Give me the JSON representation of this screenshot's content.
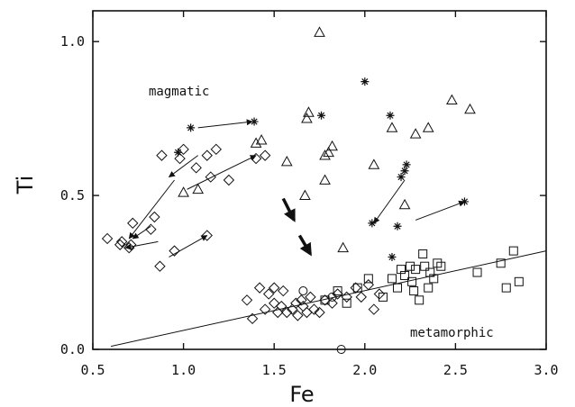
{
  "chart_data": {
    "type": "scatter",
    "title": "",
    "xlabel": "Fe",
    "ylabel": "Ti",
    "xlim": [
      0.5,
      3.0
    ],
    "ylim": [
      0.0,
      1.1
    ],
    "xticks": [
      0.5,
      1.0,
      1.5,
      2.0,
      2.5,
      3.0
    ],
    "xtick_labels": [
      "0.5",
      "1.0",
      "1.5",
      "2.0",
      "2.5",
      "3.0"
    ],
    "yticks": [
      0.0,
      0.5,
      1.0
    ],
    "ytick_labels": [
      "0.0",
      "0.5",
      "1.0"
    ],
    "grid": false,
    "color": "#111111",
    "annotations": [
      {
        "text": "magmatic",
        "x": 1.18,
        "y": 0.85
      },
      {
        "text": "metamorphic",
        "x": 2.45,
        "y": 0.05
      }
    ],
    "series": [
      {
        "marker": "diamond",
        "points": [
          [
            0.58,
            0.36
          ],
          [
            0.65,
            0.34
          ],
          [
            0.66,
            0.35
          ],
          [
            0.7,
            0.33
          ],
          [
            0.71,
            0.34
          ],
          [
            0.72,
            0.41
          ],
          [
            0.82,
            0.39
          ],
          [
            0.84,
            0.43
          ],
          [
            0.87,
            0.27
          ],
          [
            0.95,
            0.32
          ],
          [
            1.13,
            0.37
          ],
          [
            0.88,
            0.63
          ],
          [
            0.98,
            0.62
          ],
          [
            1.0,
            0.65
          ],
          [
            1.07,
            0.59
          ],
          [
            1.13,
            0.63
          ],
          [
            1.15,
            0.56
          ],
          [
            1.18,
            0.65
          ],
          [
            1.25,
            0.55
          ],
          [
            1.4,
            0.62
          ],
          [
            1.45,
            0.63
          ],
          [
            1.35,
            0.16
          ],
          [
            1.38,
            0.1
          ],
          [
            1.42,
            0.2
          ],
          [
            1.45,
            0.13
          ],
          [
            1.47,
            0.18
          ],
          [
            1.5,
            0.2
          ],
          [
            1.5,
            0.15
          ],
          [
            1.52,
            0.12
          ],
          [
            1.54,
            0.14
          ],
          [
            1.55,
            0.19
          ],
          [
            1.57,
            0.12
          ],
          [
            1.6,
            0.13
          ],
          [
            1.62,
            0.15
          ],
          [
            1.63,
            0.11
          ],
          [
            1.65,
            0.16
          ],
          [
            1.66,
            0.14
          ],
          [
            1.68,
            0.12
          ],
          [
            1.7,
            0.17
          ],
          [
            1.72,
            0.13
          ],
          [
            1.75,
            0.12
          ],
          [
            1.78,
            0.16
          ],
          [
            1.82,
            0.15
          ],
          [
            1.85,
            0.18
          ],
          [
            1.9,
            0.17
          ],
          [
            1.95,
            0.2
          ],
          [
            1.98,
            0.17
          ],
          [
            2.02,
            0.21
          ],
          [
            2.05,
            0.13
          ],
          [
            2.08,
            0.18
          ]
        ]
      },
      {
        "marker": "triangle",
        "points": [
          [
            1.0,
            0.51
          ],
          [
            1.08,
            0.52
          ],
          [
            1.4,
            0.67
          ],
          [
            1.43,
            0.68
          ],
          [
            1.57,
            0.61
          ],
          [
            1.68,
            0.75
          ],
          [
            1.69,
            0.77
          ],
          [
            1.67,
            0.5
          ],
          [
            1.75,
            1.03
          ],
          [
            1.78,
            0.63
          ],
          [
            1.8,
            0.64
          ],
          [
            1.82,
            0.66
          ],
          [
            1.78,
            0.55
          ],
          [
            1.88,
            0.33
          ],
          [
            2.05,
            0.6
          ],
          [
            2.15,
            0.72
          ],
          [
            2.22,
            0.47
          ],
          [
            2.28,
            0.7
          ],
          [
            2.35,
            0.72
          ],
          [
            2.48,
            0.81
          ],
          [
            2.58,
            0.78
          ]
        ]
      },
      {
        "marker": "asterisk",
        "points": [
          [
            0.97,
            0.64
          ],
          [
            1.04,
            0.72
          ],
          [
            1.39,
            0.74
          ],
          [
            1.76,
            0.76
          ],
          [
            2.0,
            0.87
          ],
          [
            2.04,
            0.41
          ],
          [
            2.14,
            0.76
          ],
          [
            2.15,
            0.3
          ],
          [
            2.18,
            0.4
          ],
          [
            2.2,
            0.56
          ],
          [
            2.22,
            0.58
          ],
          [
            2.23,
            0.6
          ],
          [
            2.55,
            0.48
          ]
        ]
      },
      {
        "marker": "square",
        "points": [
          [
            1.78,
            0.16
          ],
          [
            1.85,
            0.19
          ],
          [
            1.9,
            0.15
          ],
          [
            1.96,
            0.2
          ],
          [
            2.02,
            0.23
          ],
          [
            2.1,
            0.17
          ],
          [
            2.15,
            0.23
          ],
          [
            2.18,
            0.2
          ],
          [
            2.2,
            0.26
          ],
          [
            2.22,
            0.24
          ],
          [
            2.25,
            0.27
          ],
          [
            2.26,
            0.22
          ],
          [
            2.27,
            0.19
          ],
          [
            2.28,
            0.26
          ],
          [
            2.3,
            0.16
          ],
          [
            2.32,
            0.31
          ],
          [
            2.33,
            0.27
          ],
          [
            2.35,
            0.2
          ],
          [
            2.36,
            0.25
          ],
          [
            2.38,
            0.23
          ],
          [
            2.4,
            0.28
          ],
          [
            2.42,
            0.27
          ],
          [
            2.62,
            0.25
          ],
          [
            2.75,
            0.28
          ],
          [
            2.78,
            0.2
          ],
          [
            2.82,
            0.32
          ],
          [
            2.85,
            0.22
          ]
        ]
      },
      {
        "marker": "circle",
        "points": [
          [
            1.66,
            0.19
          ],
          [
            1.82,
            0.17
          ],
          [
            1.87,
            0.0
          ]
        ]
      }
    ],
    "trend_line": [
      [
        0.6,
        0.01
      ],
      [
        3.0,
        0.32
      ]
    ],
    "arrows": [
      {
        "from": [
          1.08,
          0.72
        ],
        "to": [
          1.38,
          0.74
        ],
        "bold": false
      },
      {
        "from": [
          1.08,
          0.63
        ],
        "to": [
          0.92,
          0.56
        ],
        "bold": false
      },
      {
        "from": [
          1.02,
          0.52
        ],
        "to": [
          1.4,
          0.63
        ],
        "bold": false
      },
      {
        "from": [
          0.95,
          0.55
        ],
        "to": [
          0.7,
          0.36
        ],
        "bold": false
      },
      {
        "from": [
          0.82,
          0.4
        ],
        "to": [
          0.72,
          0.36
        ],
        "bold": false
      },
      {
        "from": [
          0.86,
          0.35
        ],
        "to": [
          0.68,
          0.33
        ],
        "bold": false
      },
      {
        "from": [
          0.92,
          0.3
        ],
        "to": [
          1.13,
          0.37
        ],
        "bold": false
      },
      {
        "from": [
          2.22,
          0.55
        ],
        "to": [
          2.05,
          0.41
        ],
        "bold": false
      },
      {
        "from": [
          2.28,
          0.42
        ],
        "to": [
          2.55,
          0.48
        ],
        "bold": false
      },
      {
        "from": [
          1.55,
          0.49
        ],
        "to": [
          1.61,
          0.42
        ],
        "bold": true
      },
      {
        "from": [
          1.64,
          0.37
        ],
        "to": [
          1.7,
          0.31
        ],
        "bold": true
      }
    ]
  }
}
